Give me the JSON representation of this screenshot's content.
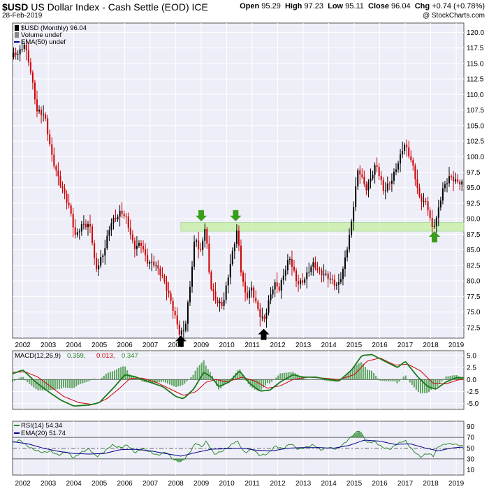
{
  "header": {
    "symbol": "$USD",
    "name": "US Dollar Index - Cash Settle (EOD)",
    "exchange": "ICE",
    "date": "28-Feb-2019",
    "open_label": "Open",
    "open": "95.29",
    "high_label": "High",
    "high": "97.23",
    "low_label": "Low",
    "low": "95.11",
    "close_label": "Close",
    "close": "96.04",
    "chg_label": "Chg",
    "chg": "+0.74 (+0.78%)",
    "watermark": "@ StockCharts.com"
  },
  "colors": {
    "panel_bg": "#eeeef8",
    "up": "#000000",
    "down": "#cc0000",
    "zone": "#ccf0b0",
    "macd": "#1a7a1a",
    "signal": "#cc0000",
    "hist": "#2e8b2e",
    "rsi": "#2e8b2e",
    "ema": "#000088",
    "arrow_green": "#3a9e1a",
    "arrow_black": "#000000"
  },
  "chart_data": [
    {
      "type": "candlestick",
      "title": "$USD (Monthly) 96.04",
      "legend": [
        "$USD (Monthly) 96.04",
        "Volume undef",
        "EMA(50) undef"
      ],
      "x_ticks": [
        "2002",
        "2003",
        "2004",
        "2005",
        "2006",
        "2007",
        "2008",
        "2009",
        "2010",
        "2011",
        "2012",
        "2013",
        "2014",
        "2015",
        "2016",
        "2017",
        "2018",
        "2019"
      ],
      "y_ticks": [
        72.5,
        75.0,
        77.5,
        80.0,
        82.5,
        85.0,
        87.5,
        90.0,
        92.5,
        95.0,
        97.5,
        100.0,
        102.5,
        105.0,
        107.5,
        110.0,
        112.5,
        115.0,
        117.5,
        120.0
      ],
      "ylim": [
        70.8,
        121.5
      ],
      "x_range": [
        2001.6,
        2019.3
      ],
      "close_anchors": [
        [
          2001.6,
          116.0
        ],
        [
          2001.9,
          117.0
        ],
        [
          2002.1,
          118.5
        ],
        [
          2002.3,
          115.0
        ],
        [
          2002.6,
          107.0
        ],
        [
          2002.9,
          106.5
        ],
        [
          2003.2,
          100.0
        ],
        [
          2003.5,
          96.0
        ],
        [
          2003.9,
          91.0
        ],
        [
          2004.1,
          87.0
        ],
        [
          2004.4,
          89.5
        ],
        [
          2004.7,
          89.0
        ],
        [
          2004.9,
          81.5
        ],
        [
          2005.2,
          84.0
        ],
        [
          2005.5,
          89.5
        ],
        [
          2005.9,
          91.5
        ],
        [
          2006.1,
          90.0
        ],
        [
          2006.4,
          85.0
        ],
        [
          2006.7,
          86.0
        ],
        [
          2006.9,
          83.5
        ],
        [
          2007.2,
          83.0
        ],
        [
          2007.5,
          80.5
        ],
        [
          2007.9,
          76.0
        ],
        [
          2008.2,
          71.8
        ],
        [
          2008.4,
          72.5
        ],
        [
          2008.6,
          79.0
        ],
        [
          2008.8,
          87.0
        ],
        [
          2009.0,
          84.0
        ],
        [
          2009.2,
          89.0
        ],
        [
          2009.4,
          79.5
        ],
        [
          2009.7,
          76.5
        ],
        [
          2009.9,
          76.0
        ],
        [
          2010.1,
          80.5
        ],
        [
          2010.45,
          88.5
        ],
        [
          2010.6,
          82.0
        ],
        [
          2010.8,
          77.5
        ],
        [
          2011.0,
          79.0
        ],
        [
          2011.3,
          74.5
        ],
        [
          2011.5,
          73.3
        ],
        [
          2011.7,
          77.0
        ],
        [
          2011.9,
          80.0
        ],
        [
          2012.1,
          79.0
        ],
        [
          2012.5,
          83.5
        ],
        [
          2012.8,
          79.5
        ],
        [
          2013.0,
          80.0
        ],
        [
          2013.4,
          83.0
        ],
        [
          2013.7,
          81.0
        ],
        [
          2014.0,
          80.5
        ],
        [
          2014.4,
          79.5
        ],
        [
          2014.6,
          82.0
        ],
        [
          2014.9,
          88.0
        ],
        [
          2015.2,
          98.0
        ],
        [
          2015.5,
          95.0
        ],
        [
          2015.9,
          99.0
        ],
        [
          2016.2,
          94.0
        ],
        [
          2016.5,
          96.0
        ],
        [
          2016.9,
          101.0
        ],
        [
          2017.0,
          102.5
        ],
        [
          2017.3,
          99.0
        ],
        [
          2017.6,
          93.0
        ],
        [
          2017.9,
          92.5
        ],
        [
          2018.1,
          88.8
        ],
        [
          2018.25,
          90.0
        ],
        [
          2018.5,
          94.5
        ],
        [
          2018.8,
          96.5
        ],
        [
          2019.0,
          96.0
        ],
        [
          2019.15,
          96.04
        ]
      ],
      "horizontal_zone": {
        "from": 88.0,
        "to": 89.4
      },
      "annotations": [
        {
          "kind": "arrow-down",
          "x": 2009.0,
          "y": 89.6
        },
        {
          "kind": "arrow-down",
          "x": 2010.35,
          "y": 89.6
        },
        {
          "kind": "arrow-up",
          "x": 2008.2,
          "y": 71.2
        },
        {
          "kind": "arrow-up",
          "x": 2011.45,
          "y": 72.3
        },
        {
          "kind": "arrow-up",
          "x": 2018.15,
          "y": 88.0
        }
      ]
    },
    {
      "type": "line",
      "title": "MACD(12,26,9) 0.359, 0.013, 0.347",
      "legend_prefix": "MACD(12,26,9)",
      "legend_values": [
        "0.359,",
        "0.013,",
        "0.347"
      ],
      "y_ticks": [
        5.0,
        2.5,
        0.0,
        -2.5,
        -5.0
      ],
      "ylim": [
        -6.2,
        6.0
      ],
      "series": [
        {
          "name": "MACD",
          "role": "macd",
          "anchors": [
            [
              2001.6,
              1.2
            ],
            [
              2002.0,
              2.0
            ],
            [
              2002.5,
              -0.5
            ],
            [
              2003.0,
              -2.5
            ],
            [
              2003.5,
              -4.3
            ],
            [
              2004.0,
              -5.5
            ],
            [
              2004.6,
              -5.3
            ],
            [
              2005.0,
              -4.8
            ],
            [
              2005.6,
              -1.5
            ],
            [
              2006.0,
              1.0
            ],
            [
              2006.4,
              0.6
            ],
            [
              2006.9,
              -0.4
            ],
            [
              2007.5,
              -1.5
            ],
            [
              2008.0,
              -3.5
            ],
            [
              2008.3,
              -4.0
            ],
            [
              2008.7,
              -2.0
            ],
            [
              2009.1,
              1.5
            ],
            [
              2009.4,
              0.5
            ],
            [
              2009.7,
              -1.5
            ],
            [
              2010.1,
              -0.5
            ],
            [
              2010.5,
              1.8
            ],
            [
              2010.9,
              -0.8
            ],
            [
              2011.3,
              -2.4
            ],
            [
              2011.7,
              -2.2
            ],
            [
              2012.1,
              -0.5
            ],
            [
              2012.6,
              1.0
            ],
            [
              2013.0,
              0.5
            ],
            [
              2013.5,
              0.5
            ],
            [
              2014.0,
              0.0
            ],
            [
              2014.4,
              -0.3
            ],
            [
              2014.9,
              2.0
            ],
            [
              2015.3,
              5.0
            ],
            [
              2015.7,
              5.2
            ],
            [
              2016.2,
              3.8
            ],
            [
              2016.7,
              2.5
            ],
            [
              2017.0,
              3.8
            ],
            [
              2017.5,
              0.5
            ],
            [
              2017.9,
              -1.5
            ],
            [
              2018.2,
              -2.0
            ],
            [
              2018.6,
              -0.5
            ],
            [
              2019.0,
              0.4
            ],
            [
              2019.15,
              0.359
            ]
          ]
        },
        {
          "name": "Signal",
          "role": "signal",
          "anchors": [
            [
              2001.6,
              1.5
            ],
            [
              2002.1,
              1.6
            ],
            [
              2002.6,
              0.5
            ],
            [
              2003.1,
              -1.5
            ],
            [
              2003.6,
              -3.5
            ],
            [
              2004.2,
              -4.8
            ],
            [
              2004.8,
              -5.2
            ],
            [
              2005.3,
              -4.0
            ],
            [
              2005.8,
              -1.8
            ],
            [
              2006.2,
              0.2
            ],
            [
              2006.7,
              0.3
            ],
            [
              2007.2,
              -0.5
            ],
            [
              2007.8,
              -2.0
            ],
            [
              2008.3,
              -3.3
            ],
            [
              2008.8,
              -2.5
            ],
            [
              2009.2,
              -0.5
            ],
            [
              2009.6,
              0.0
            ],
            [
              2010.0,
              -0.5
            ],
            [
              2010.6,
              0.5
            ],
            [
              2011.1,
              -0.3
            ],
            [
              2011.6,
              -1.8
            ],
            [
              2012.1,
              -1.3
            ],
            [
              2012.6,
              0.0
            ],
            [
              2013.2,
              0.5
            ],
            [
              2013.8,
              0.3
            ],
            [
              2014.4,
              0.0
            ],
            [
              2015.0,
              1.0
            ],
            [
              2015.5,
              3.8
            ],
            [
              2016.0,
              4.5
            ],
            [
              2016.6,
              3.0
            ],
            [
              2017.1,
              3.2
            ],
            [
              2017.6,
              1.8
            ],
            [
              2018.1,
              -0.8
            ],
            [
              2018.6,
              -0.9
            ],
            [
              2019.0,
              -0.2
            ],
            [
              2019.15,
              0.013
            ]
          ]
        }
      ],
      "histogram": "macd_minus_signal"
    },
    {
      "type": "line",
      "title": "RSI(14) 54.34",
      "legend": [
        "RSI(14) 54.34",
        "EMA(20) 51.74"
      ],
      "y_ticks": [
        90,
        70,
        50,
        30,
        10
      ],
      "ylim": [
        0,
        100
      ],
      "reference_lines": [
        70,
        50,
        30
      ],
      "series": [
        {
          "name": "RSI(14)",
          "role": "rsi",
          "anchors": [
            [
              2001.6,
              58
            ],
            [
              2001.9,
              65
            ],
            [
              2002.2,
              55
            ],
            [
              2002.5,
              46
            ],
            [
              2002.8,
              40
            ],
            [
              2003.1,
              44
            ],
            [
              2003.4,
              38
            ],
            [
              2003.7,
              45
            ],
            [
              2004.0,
              30
            ],
            [
              2004.3,
              42
            ],
            [
              2004.6,
              50
            ],
            [
              2004.9,
              35
            ],
            [
              2005.2,
              42
            ],
            [
              2005.5,
              55
            ],
            [
              2005.8,
              52
            ],
            [
              2006.1,
              57
            ],
            [
              2006.4,
              40
            ],
            [
              2006.7,
              48
            ],
            [
              2007.0,
              44
            ],
            [
              2007.3,
              38
            ],
            [
              2007.6,
              42
            ],
            [
              2007.9,
              28
            ],
            [
              2008.2,
              25
            ],
            [
              2008.5,
              40
            ],
            [
              2008.8,
              60
            ],
            [
              2009.0,
              50
            ],
            [
              2009.2,
              62
            ],
            [
              2009.5,
              40
            ],
            [
              2009.8,
              45
            ],
            [
              2010.1,
              52
            ],
            [
              2010.4,
              63
            ],
            [
              2010.7,
              42
            ],
            [
              2011.0,
              50
            ],
            [
              2011.3,
              35
            ],
            [
              2011.6,
              38
            ],
            [
              2011.9,
              55
            ],
            [
              2012.2,
              50
            ],
            [
              2012.5,
              58
            ],
            [
              2012.8,
              46
            ],
            [
              2013.1,
              52
            ],
            [
              2013.4,
              58
            ],
            [
              2013.7,
              46
            ],
            [
              2014.0,
              50
            ],
            [
              2014.3,
              48
            ],
            [
              2014.6,
              60
            ],
            [
              2014.9,
              72
            ],
            [
              2015.2,
              82
            ],
            [
              2015.5,
              60
            ],
            [
              2015.8,
              64
            ],
            [
              2016.1,
              52
            ],
            [
              2016.4,
              46
            ],
            [
              2016.7,
              58
            ],
            [
              2017.0,
              66
            ],
            [
              2017.3,
              46
            ],
            [
              2017.6,
              32
            ],
            [
              2017.9,
              40
            ],
            [
              2018.1,
              36
            ],
            [
              2018.3,
              55
            ],
            [
              2018.6,
              58
            ],
            [
              2018.9,
              56
            ],
            [
              2019.15,
              54.34
            ]
          ]
        },
        {
          "name": "EMA(20)",
          "role": "ema",
          "anchors": [
            [
              2001.6,
              62
            ],
            [
              2002.2,
              58
            ],
            [
              2002.8,
              50
            ],
            [
              2003.4,
              44
            ],
            [
              2004.0,
              40
            ],
            [
              2004.6,
              39
            ],
            [
              2005.2,
              40
            ],
            [
              2005.8,
              47
            ],
            [
              2006.4,
              48
            ],
            [
              2007.0,
              45
            ],
            [
              2007.6,
              40
            ],
            [
              2008.2,
              35
            ],
            [
              2008.8,
              42
            ],
            [
              2009.4,
              48
            ],
            [
              2010.0,
              49
            ],
            [
              2010.6,
              50
            ],
            [
              2011.2,
              46
            ],
            [
              2011.8,
              45
            ],
            [
              2012.4,
              50
            ],
            [
              2013.0,
              51
            ],
            [
              2013.6,
              51
            ],
            [
              2014.2,
              50
            ],
            [
              2014.8,
              55
            ],
            [
              2015.4,
              65
            ],
            [
              2016.0,
              63
            ],
            [
              2016.6,
              57
            ],
            [
              2017.2,
              58
            ],
            [
              2017.8,
              50
            ],
            [
              2018.3,
              45
            ],
            [
              2018.8,
              50
            ],
            [
              2019.15,
              51.74
            ]
          ]
        }
      ]
    }
  ]
}
